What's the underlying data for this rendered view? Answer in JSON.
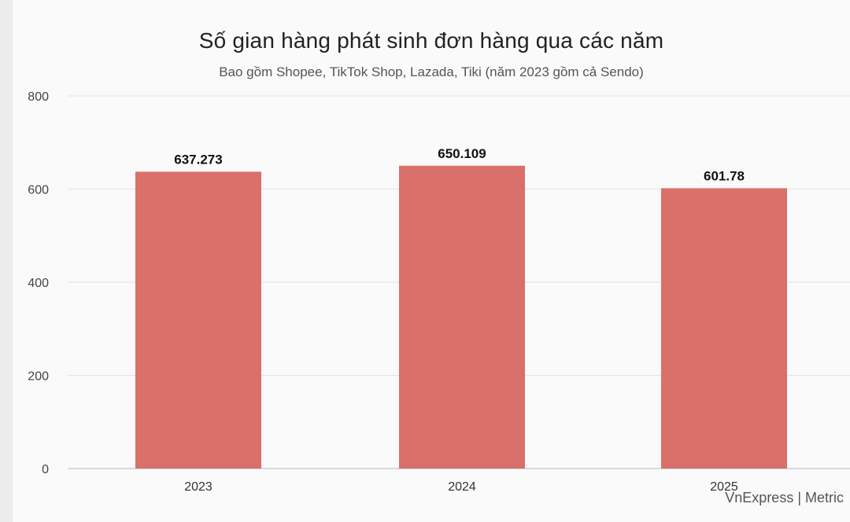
{
  "chart_data": {
    "type": "bar",
    "title": "Số gian hàng phát sinh đơn hàng qua các năm",
    "subtitle": "Bao gồm Shopee, TikTok Shop, Lazada, Tiki (năm 2023 gồm cả Sendo)",
    "categories": [
      "2023",
      "2024",
      "2025"
    ],
    "values": [
      637.273,
      650.109,
      601.78
    ],
    "value_labels": [
      "637.273",
      "650.109",
      "601.78"
    ],
    "ylim": [
      0,
      800
    ],
    "yticks": [
      0,
      200,
      400,
      600,
      800
    ],
    "xlabel": "",
    "ylabel": "",
    "grid": true,
    "bar_color": "#d9706a"
  },
  "source": "VnExpress | Metric"
}
